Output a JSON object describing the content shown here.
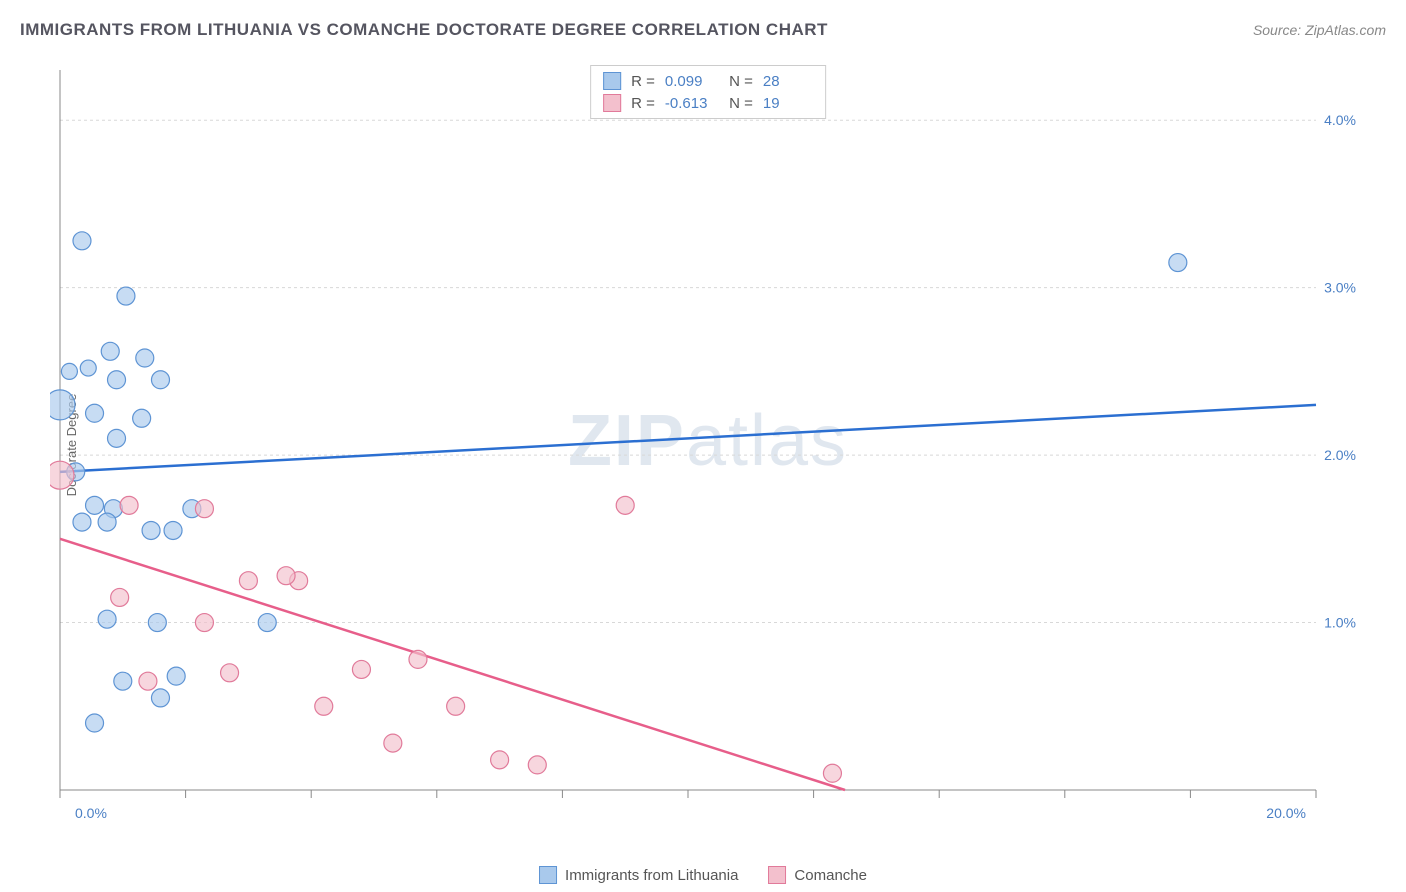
{
  "title": "IMMIGRANTS FROM LITHUANIA VS COMANCHE DOCTORATE DEGREE CORRELATION CHART",
  "source": "Source: ZipAtlas.com",
  "watermark_zip": "ZIP",
  "watermark_atlas": "atlas",
  "ylabel": "Doctorate Degree",
  "chart": {
    "type": "scatter",
    "background_color": "#ffffff",
    "grid_color": "#d8d8d8",
    "axis_color": "#888888",
    "tick_label_color": "#4a7fc4",
    "tick_fontsize": 14,
    "label_fontsize": 13,
    "xlim": [
      0,
      20
    ],
    "ylim": [
      0,
      4.3
    ],
    "x_ticks": [
      0,
      2,
      4,
      6,
      8,
      10,
      12,
      14,
      16,
      18,
      20
    ],
    "x_tick_labels": {
      "0": "0.0%",
      "20": "20.0%"
    },
    "y_grid": [
      1.0,
      2.0,
      3.0,
      4.0
    ],
    "y_tick_labels": {
      "1.0": "1.0%",
      "2.0": "2.0%",
      "3.0": "3.0%",
      "4.0": "4.0%"
    },
    "series": [
      {
        "name": "Immigrants from Lithuania",
        "marker_fill": "#a9c9ec",
        "marker_stroke": "#5e94d4",
        "marker_fill_opacity": 0.65,
        "marker_radius": 9,
        "trend_color": "#2b6fd1",
        "trend_width": 2.5,
        "trend": {
          "x1": 0,
          "y1": 1.9,
          "x2": 20,
          "y2": 2.3
        },
        "R": "0.099",
        "N": "28",
        "points": [
          {
            "x": 0.35,
            "y": 3.28,
            "r": 9
          },
          {
            "x": 1.05,
            "y": 2.95,
            "r": 9
          },
          {
            "x": 0.8,
            "y": 2.62,
            "r": 9
          },
          {
            "x": 1.35,
            "y": 2.58,
            "r": 9
          },
          {
            "x": 0.15,
            "y": 2.5,
            "r": 8
          },
          {
            "x": 0.45,
            "y": 2.52,
            "r": 8
          },
          {
            "x": 0.9,
            "y": 2.45,
            "r": 9
          },
          {
            "x": 1.6,
            "y": 2.45,
            "r": 9
          },
          {
            "x": 0.0,
            "y": 2.3,
            "r": 15
          },
          {
            "x": 0.55,
            "y": 2.25,
            "r": 9
          },
          {
            "x": 1.3,
            "y": 2.22,
            "r": 9
          },
          {
            "x": 0.9,
            "y": 2.1,
            "r": 9
          },
          {
            "x": 0.25,
            "y": 1.9,
            "r": 9
          },
          {
            "x": 0.55,
            "y": 1.7,
            "r": 9
          },
          {
            "x": 0.85,
            "y": 1.68,
            "r": 9
          },
          {
            "x": 2.1,
            "y": 1.68,
            "r": 9
          },
          {
            "x": 0.35,
            "y": 1.6,
            "r": 9
          },
          {
            "x": 0.75,
            "y": 1.6,
            "r": 9
          },
          {
            "x": 1.45,
            "y": 1.55,
            "r": 9
          },
          {
            "x": 1.8,
            "y": 1.55,
            "r": 9
          },
          {
            "x": 0.75,
            "y": 1.02,
            "r": 9
          },
          {
            "x": 1.55,
            "y": 1.0,
            "r": 9
          },
          {
            "x": 3.3,
            "y": 1.0,
            "r": 9
          },
          {
            "x": 1.85,
            "y": 0.68,
            "r": 9
          },
          {
            "x": 1.0,
            "y": 0.65,
            "r": 9
          },
          {
            "x": 1.6,
            "y": 0.55,
            "r": 9
          },
          {
            "x": 0.55,
            "y": 0.4,
            "r": 9
          },
          {
            "x": 17.8,
            "y": 3.15,
            "r": 9
          }
        ]
      },
      {
        "name": "Comanche",
        "marker_fill": "#f3c0cd",
        "marker_stroke": "#e17a9a",
        "marker_fill_opacity": 0.65,
        "marker_radius": 9,
        "trend_color": "#e75e8a",
        "trend_width": 2.5,
        "trend": {
          "x1": 0,
          "y1": 1.5,
          "x2": 12.5,
          "y2": 0.0
        },
        "R": "-0.613",
        "N": "19",
        "points": [
          {
            "x": 0.0,
            "y": 1.88,
            "r": 14
          },
          {
            "x": 1.1,
            "y": 1.7,
            "r": 9
          },
          {
            "x": 2.3,
            "y": 1.68,
            "r": 9
          },
          {
            "x": 9.0,
            "y": 1.7,
            "r": 9
          },
          {
            "x": 0.95,
            "y": 1.15,
            "r": 9
          },
          {
            "x": 3.0,
            "y": 1.25,
            "r": 9
          },
          {
            "x": 3.8,
            "y": 1.25,
            "r": 9
          },
          {
            "x": 3.6,
            "y": 1.28,
            "r": 9
          },
          {
            "x": 2.3,
            "y": 1.0,
            "r": 9
          },
          {
            "x": 5.7,
            "y": 0.78,
            "r": 9
          },
          {
            "x": 1.4,
            "y": 0.65,
            "r": 9
          },
          {
            "x": 2.7,
            "y": 0.7,
            "r": 9
          },
          {
            "x": 4.8,
            "y": 0.72,
            "r": 9
          },
          {
            "x": 4.2,
            "y": 0.5,
            "r": 9
          },
          {
            "x": 6.3,
            "y": 0.5,
            "r": 9
          },
          {
            "x": 5.3,
            "y": 0.28,
            "r": 9
          },
          {
            "x": 7.0,
            "y": 0.18,
            "r": 9
          },
          {
            "x": 7.6,
            "y": 0.15,
            "r": 9
          },
          {
            "x": 12.3,
            "y": 0.1,
            "r": 9
          }
        ]
      }
    ]
  }
}
